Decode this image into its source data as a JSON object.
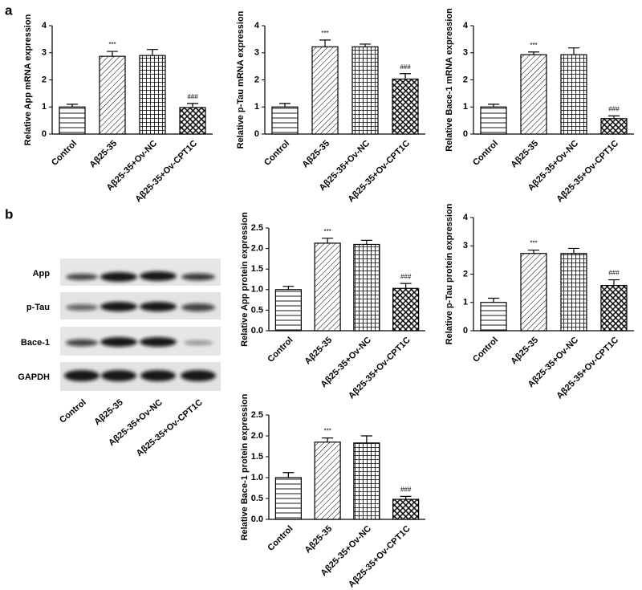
{
  "panel_labels": [
    "a",
    "b"
  ],
  "blot": {
    "rows": [
      "App",
      "p-Tau",
      "Bace-1",
      "GAPDH"
    ],
    "categories": [
      "Control",
      "Aβ25-35",
      "Aβ25-35+Ov-NC",
      "Aβ25-35+Ov-CPT1C"
    ]
  },
  "chart_data": [
    {
      "type": "bar",
      "y_label": "Relative App mRNA expression",
      "categories": [
        "Control",
        "Aβ25-35",
        "Aβ25-35+Ov-NC",
        "Aβ25-35+Ov-CPT1C"
      ],
      "values": [
        1.0,
        2.87,
        2.9,
        0.98
      ],
      "errors": [
        0.1,
        0.18,
        0.22,
        0.15
      ],
      "value_annotations": [
        null,
        "***",
        null,
        "###"
      ],
      "ylim": [
        0,
        4
      ],
      "yticks": [
        0,
        1,
        2,
        3,
        4
      ]
    },
    {
      "type": "bar",
      "y_label": "Relative p-Tau mRNA expression",
      "categories": [
        "Control",
        "Aβ25-35",
        "Aβ25-35+Ov-NC",
        "Aβ25-35+Ov-CPT1C"
      ],
      "values": [
        1.0,
        3.22,
        3.22,
        2.03
      ],
      "errors": [
        0.13,
        0.25,
        0.1,
        0.2
      ],
      "value_annotations": [
        null,
        "***",
        null,
        "###"
      ],
      "ylim": [
        0,
        4
      ],
      "yticks": [
        0,
        1,
        2,
        3,
        4
      ]
    },
    {
      "type": "bar",
      "y_label": "Relative Bace-1 mRNA expression",
      "categories": [
        "Control",
        "Aβ25-35",
        "Aβ25-35+Ov-NC",
        "Aβ25-35+Ov-CPT1C"
      ],
      "values": [
        1.0,
        2.93,
        2.93,
        0.57
      ],
      "errors": [
        0.1,
        0.1,
        0.25,
        0.1
      ],
      "value_annotations": [
        null,
        "***",
        null,
        "###"
      ],
      "ylim": [
        0,
        4
      ],
      "yticks": [
        0,
        1,
        2,
        3,
        4
      ]
    },
    {
      "type": "bar",
      "y_label": "Relative App protein expression",
      "categories": [
        "Control",
        "Aβ25-35",
        "Aβ25-35+Ov-NC",
        "Aβ25-35+Ov-CPT1C"
      ],
      "values": [
        1.0,
        2.13,
        2.1,
        1.03
      ],
      "errors": [
        0.08,
        0.12,
        0.1,
        0.12
      ],
      "value_annotations": [
        null,
        "***",
        null,
        "###"
      ],
      "ylim": [
        0,
        2.5
      ],
      "yticks": [
        {
          "value": 0,
          "label": "0.0"
        },
        0.5,
        {
          "value": 1,
          "label": "1.0"
        },
        1.5,
        {
          "value": 2,
          "label": "2.0"
        },
        2.5
      ]
    },
    {
      "type": "bar",
      "y_label": "Relative p-Tau protein expression",
      "categories": [
        "Control",
        "Aβ25-35",
        "Aβ25-35+Ov-NC",
        "Aβ25-35+Ov-CPT1C"
      ],
      "values": [
        1.0,
        2.73,
        2.73,
        1.6
      ],
      "errors": [
        0.15,
        0.12,
        0.18,
        0.2
      ],
      "value_annotations": [
        null,
        "***",
        null,
        "###"
      ],
      "ylim": [
        0,
        4
      ],
      "yticks": [
        0,
        1,
        2,
        3,
        4
      ]
    },
    {
      "type": "bar",
      "y_label": "Relative Bace-1 protein expression",
      "categories": [
        "Control",
        "Aβ25-35",
        "Aβ25-35+Ov-NC",
        "Aβ25-35+Ov-CPT1C"
      ],
      "values": [
        1.0,
        1.85,
        1.83,
        0.48
      ],
      "errors": [
        0.12,
        0.1,
        0.17,
        0.07
      ],
      "value_annotations": [
        null,
        "***",
        null,
        "###"
      ],
      "ylim": [
        0,
        2.5
      ],
      "yticks": [
        {
          "value": 0,
          "label": "0.0"
        },
        0.5,
        {
          "value": 1,
          "label": "1.0"
        },
        1.5,
        {
          "value": 2,
          "label": "2.0"
        },
        2.5
      ]
    }
  ]
}
